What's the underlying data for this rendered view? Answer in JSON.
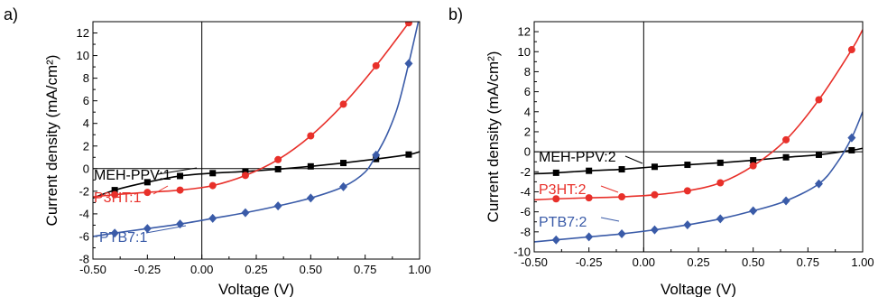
{
  "chart_data": [
    {
      "panel_label": "a)",
      "type": "line",
      "xlabel": "Voltage (V)",
      "ylabel": "Current density (mA/cm²)",
      "xlim": [
        -0.5,
        1.0
      ],
      "ylim": [
        -8,
        13
      ],
      "xticks": [
        "-0.50",
        "-0.25",
        "0.00",
        "0.25",
        "0.50",
        "0.75",
        "1.00"
      ],
      "yticks": [
        "-8",
        "-6",
        "-4",
        "-2",
        "0",
        "2",
        "4",
        "6",
        "8",
        "10",
        "12"
      ],
      "zero_lines": true,
      "series": [
        {
          "name": "MEH-PPV:1",
          "color": "#000000",
          "marker": "square",
          "curve_x": [
            -0.5,
            -0.4,
            -0.25,
            -0.1,
            0.05,
            0.2,
            0.35,
            0.5,
            0.65,
            0.8,
            0.95,
            1.0
          ],
          "curve_y": [
            -2.6,
            -1.9,
            -1.2,
            -0.65,
            -0.4,
            -0.25,
            -0.05,
            0.2,
            0.5,
            0.85,
            1.25,
            1.5
          ],
          "markers_x": [
            -0.4,
            -0.25,
            -0.1,
            0.05,
            0.2,
            0.35,
            0.5,
            0.65,
            0.8,
            0.95
          ],
          "markers_y": [
            -1.9,
            -1.2,
            -0.65,
            -0.4,
            -0.25,
            -0.05,
            0.2,
            0.5,
            0.85,
            1.25
          ]
        },
        {
          "name": "P3HT:1",
          "color": "#e8302a",
          "marker": "circle",
          "curve_x": [
            -0.5,
            -0.4,
            -0.25,
            -0.1,
            0.05,
            0.2,
            0.35,
            0.5,
            0.65,
            0.8,
            0.95,
            1.0
          ],
          "curve_y": [
            -2.5,
            -2.3,
            -2.1,
            -1.9,
            -1.5,
            -0.6,
            0.8,
            2.9,
            5.7,
            9.1,
            12.9,
            14.2
          ],
          "markers_x": [
            -0.4,
            -0.25,
            -0.1,
            0.05,
            0.2,
            0.35,
            0.5,
            0.65,
            0.8,
            0.95
          ],
          "markers_y": [
            -2.3,
            -2.1,
            -1.9,
            -1.5,
            -0.6,
            0.8,
            2.9,
            5.7,
            9.1,
            12.9
          ]
        },
        {
          "name": "PTB7:1",
          "color": "#3a5ba8",
          "marker": "diamond",
          "curve_x": [
            -0.5,
            -0.4,
            -0.25,
            -0.1,
            0.05,
            0.2,
            0.35,
            0.5,
            0.65,
            0.75,
            0.8,
            0.85,
            0.9,
            0.95,
            1.0
          ],
          "curve_y": [
            -6.0,
            -5.7,
            -5.3,
            -4.9,
            -4.4,
            -3.9,
            -3.3,
            -2.6,
            -1.6,
            -0.3,
            1.2,
            3.0,
            5.5,
            9.3,
            13.5
          ],
          "markers_x": [
            -0.4,
            -0.25,
            -0.1,
            0.05,
            0.2,
            0.35,
            0.5,
            0.65,
            0.8,
            0.95
          ],
          "markers_y": [
            -5.7,
            -5.3,
            -4.9,
            -4.4,
            -3.9,
            -3.3,
            -2.6,
            -1.6,
            1.2,
            9.3
          ]
        }
      ]
    },
    {
      "panel_label": "b)",
      "type": "line",
      "xlabel": "Voltage (V)",
      "ylabel": "Current density (mA/cm²)",
      "xlim": [
        -0.5,
        1.0
      ],
      "ylim": [
        -10,
        13
      ],
      "xticks": [
        "-0.50",
        "-0.25",
        "0.00",
        "0.25",
        "0.50",
        "0.75",
        "1.00"
      ],
      "yticks": [
        "-10",
        "-8",
        "-6",
        "-4",
        "-2",
        "0",
        "2",
        "4",
        "6",
        "8",
        "10",
        "12"
      ],
      "zero_lines": true,
      "series": [
        {
          "name": "MEH-PPV:2",
          "color": "#000000",
          "marker": "square",
          "curve_x": [
            -0.5,
            -0.4,
            -0.25,
            -0.1,
            0.05,
            0.2,
            0.35,
            0.5,
            0.65,
            0.8,
            0.95,
            1.0
          ],
          "curve_y": [
            -2.2,
            -2.1,
            -1.9,
            -1.75,
            -1.5,
            -1.3,
            -1.1,
            -0.85,
            -0.55,
            -0.3,
            0.15,
            0.35
          ],
          "markers_x": [
            -0.4,
            -0.25,
            -0.1,
            0.05,
            0.2,
            0.35,
            0.5,
            0.65,
            0.8,
            0.95
          ],
          "markers_y": [
            -2.1,
            -1.9,
            -1.75,
            -1.5,
            -1.3,
            -1.1,
            -0.85,
            -0.55,
            -0.3,
            0.15
          ]
        },
        {
          "name": "P3HT:2",
          "color": "#e8302a",
          "marker": "circle",
          "curve_x": [
            -0.5,
            -0.4,
            -0.25,
            -0.1,
            0.05,
            0.2,
            0.35,
            0.5,
            0.65,
            0.8,
            0.95,
            1.0
          ],
          "curve_y": [
            -4.8,
            -4.7,
            -4.6,
            -4.5,
            -4.3,
            -3.9,
            -3.1,
            -1.4,
            1.2,
            5.2,
            10.2,
            12.2
          ],
          "markers_x": [
            -0.4,
            -0.25,
            -0.1,
            0.05,
            0.2,
            0.35,
            0.5,
            0.65,
            0.8,
            0.95
          ],
          "markers_y": [
            -4.7,
            -4.6,
            -4.5,
            -4.3,
            -3.9,
            -3.1,
            -1.4,
            1.2,
            5.2,
            10.2
          ]
        },
        {
          "name": "PTB7:2",
          "color": "#3a5ba8",
          "marker": "diamond",
          "curve_x": [
            -0.5,
            -0.4,
            -0.25,
            -0.1,
            0.05,
            0.2,
            0.35,
            0.5,
            0.65,
            0.8,
            0.88,
            0.95,
            1.0
          ],
          "curve_y": [
            -9.0,
            -8.8,
            -8.5,
            -8.2,
            -7.8,
            -7.3,
            -6.7,
            -5.9,
            -4.9,
            -3.2,
            -1.2,
            1.4,
            4.0
          ],
          "markers_x": [
            -0.4,
            -0.25,
            -0.1,
            0.05,
            0.2,
            0.35,
            0.5,
            0.65,
            0.8,
            0.95
          ],
          "markers_y": [
            -8.8,
            -8.5,
            -8.2,
            -7.8,
            -7.3,
            -6.7,
            -5.9,
            -4.9,
            -3.2,
            1.4
          ]
        }
      ]
    }
  ]
}
